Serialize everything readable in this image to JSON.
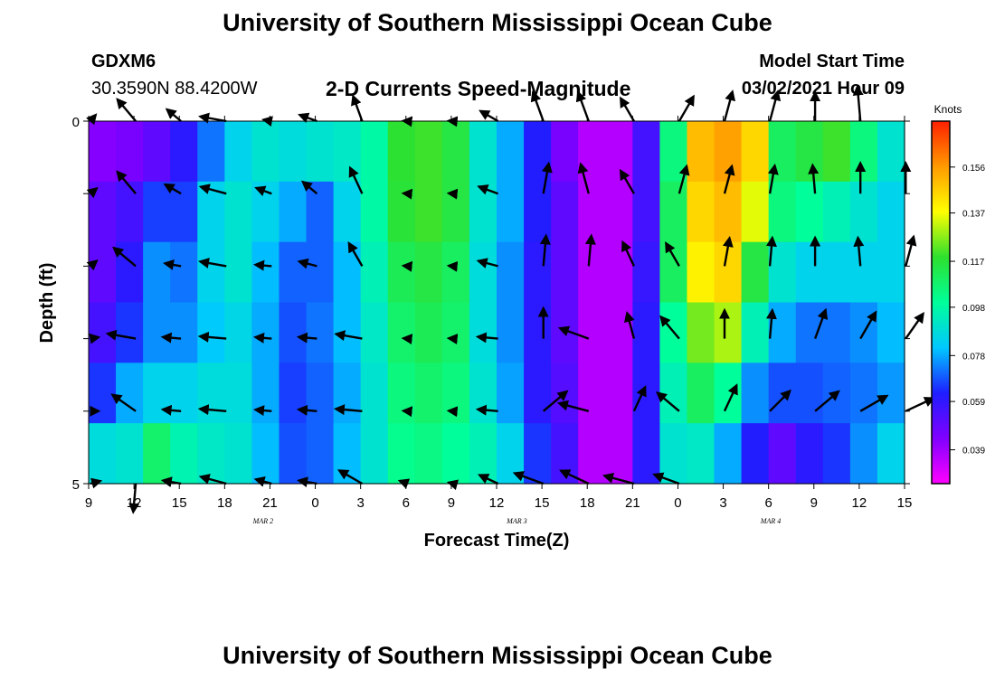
{
  "page": {
    "title_top": "University of Southern Mississippi Ocean Cube",
    "title_bottom": "University of Southern Mississippi Ocean Cube"
  },
  "header": {
    "station": "GDXM6",
    "coords": "30.3590N 88.4200W",
    "subtitle": "2-D Currents Speed-Magnitude",
    "model_label": "Model Start Time",
    "model_time": "03/02/2021 Hour 09"
  },
  "chart_data": {
    "type": "heatmap",
    "title": "2-D Currents Speed-Magnitude",
    "xlabel": "Forecast Time(Z)",
    "ylabel": "Depth (ft)",
    "y_ticks": [
      "0",
      "5"
    ],
    "ylim": [
      0,
      5
    ],
    "x_ticks": [
      "9",
      "12",
      "15",
      "18",
      "21",
      "0",
      "3",
      "6",
      "9",
      "12",
      "15",
      "18",
      "21",
      "0",
      "3",
      "6",
      "9",
      "12",
      "15"
    ],
    "date_labels": [
      {
        "text": "MAR 2",
        "hour": 16.5
      },
      {
        "text": "MAR 3",
        "hour": 40.5
      },
      {
        "text": "MAR 4",
        "hour": 64.5
      }
    ],
    "x_range_hours": [
      0,
      54
    ],
    "colorbar": {
      "title": "Knots",
      "ticks": [
        "0.156",
        "0.137",
        "0.117",
        "0.098",
        "0.078",
        "0.059",
        "0.039"
      ],
      "tick_values": [
        0.156,
        0.137,
        0.117,
        0.098,
        0.078,
        0.059,
        0.039
      ],
      "range": [
        0.025,
        0.175
      ],
      "stops": [
        "#ff00ff",
        "#8000ff",
        "#1e1eff",
        "#00c8ff",
        "#00ff9a",
        "#2ee02e",
        "#ffff00",
        "#ff9a00",
        "#ff2000"
      ]
    },
    "depth_layers": 5,
    "speed_grid": [
      [
        0.043,
        0.045,
        0.05,
        0.06,
        0.072,
        0.085,
        0.09,
        0.088,
        0.09,
        0.092,
        0.098,
        0.118,
        0.12,
        0.115,
        0.09,
        0.078,
        0.062,
        0.045,
        0.036,
        0.036,
        0.055,
        0.105,
        0.15,
        0.155,
        0.145,
        0.11,
        0.115,
        0.12,
        0.105,
        0.09
      ],
      [
        0.05,
        0.055,
        0.066,
        0.066,
        0.085,
        0.09,
        0.085,
        0.078,
        0.07,
        0.085,
        0.098,
        0.117,
        0.12,
        0.115,
        0.09,
        0.078,
        0.062,
        0.05,
        0.036,
        0.036,
        0.055,
        0.11,
        0.145,
        0.15,
        0.135,
        0.105,
        0.1,
        0.095,
        0.09,
        0.085
      ],
      [
        0.05,
        0.06,
        0.075,
        0.072,
        0.085,
        0.09,
        0.08,
        0.07,
        0.07,
        0.08,
        0.095,
        0.112,
        0.115,
        0.11,
        0.088,
        0.075,
        0.06,
        0.05,
        0.036,
        0.036,
        0.058,
        0.11,
        0.14,
        0.145,
        0.115,
        0.09,
        0.085,
        0.085,
        0.085,
        0.085
      ],
      [
        0.055,
        0.065,
        0.075,
        0.075,
        0.082,
        0.086,
        0.078,
        0.068,
        0.072,
        0.08,
        0.092,
        0.108,
        0.112,
        0.108,
        0.088,
        0.075,
        0.06,
        0.05,
        0.036,
        0.036,
        0.06,
        0.1,
        0.125,
        0.13,
        0.095,
        0.078,
        0.072,
        0.072,
        0.075,
        0.08
      ],
      [
        0.065,
        0.078,
        0.085,
        0.085,
        0.088,
        0.088,
        0.078,
        0.066,
        0.07,
        0.078,
        0.09,
        0.105,
        0.108,
        0.105,
        0.09,
        0.077,
        0.06,
        0.052,
        0.036,
        0.036,
        0.06,
        0.095,
        0.11,
        0.1,
        0.075,
        0.068,
        0.068,
        0.07,
        0.072,
        0.076
      ],
      [
        0.088,
        0.09,
        0.108,
        0.096,
        0.092,
        0.09,
        0.08,
        0.068,
        0.07,
        0.08,
        0.09,
        0.102,
        0.104,
        0.1,
        0.095,
        0.085,
        0.065,
        0.055,
        0.036,
        0.036,
        0.06,
        0.09,
        0.092,
        0.078,
        0.062,
        0.05,
        0.06,
        0.065,
        0.075,
        0.085
      ]
    ],
    "vectors": [
      {
        "depth": 0,
        "cols": [
          [
            -50,
            20
          ],
          [
            -130,
            70
          ],
          [
            -140,
            45
          ],
          [
            -170,
            65
          ],
          [
            -170,
            20
          ],
          [
            -160,
            45
          ],
          [
            -110,
            65
          ],
          [
            -175,
            10
          ],
          [
            -175,
            10
          ],
          [
            -150,
            50
          ],
          [
            -110,
            75
          ],
          [
            -110,
            75
          ],
          [
            -120,
            65
          ],
          [
            -60,
            70
          ],
          [
            -75,
            75
          ],
          [
            -75,
            75
          ],
          [
            -90,
            70
          ],
          [
            -95,
            85
          ],
          [
            0,
            0
          ]
        ]
      },
      {
        "depth": 1,
        "cols": [
          [
            -40,
            20
          ],
          [
            -130,
            70
          ],
          [
            -150,
            45
          ],
          [
            -165,
            65
          ],
          [
            -160,
            40
          ],
          [
            -140,
            45
          ],
          [
            -115,
            70
          ],
          [
            -175,
            10
          ],
          [
            -175,
            10
          ],
          [
            -160,
            50
          ],
          [
            -80,
            75
          ],
          [
            -105,
            75
          ],
          [
            -120,
            65
          ],
          [
            -75,
            70
          ],
          [
            -75,
            70
          ],
          [
            -80,
            70
          ],
          [
            -95,
            70
          ],
          [
            -90,
            75
          ],
          [
            -90,
            75
          ]
        ]
      },
      {
        "depth": 2,
        "cols": [
          [
            -40,
            20
          ],
          [
            -140,
            70
          ],
          [
            -170,
            40
          ],
          [
            -170,
            65
          ],
          [
            -175,
            40
          ],
          [
            -165,
            45
          ],
          [
            -120,
            65
          ],
          [
            -175,
            10
          ],
          [
            -175,
            10
          ],
          [
            -165,
            50
          ],
          [
            -85,
            75
          ],
          [
            -85,
            75
          ],
          [
            -115,
            65
          ],
          [
            -120,
            65
          ],
          [
            -80,
            70
          ],
          [
            -85,
            70
          ],
          [
            -90,
            70
          ],
          [
            -95,
            70
          ],
          [
            -75,
            75
          ]
        ]
      },
      {
        "depth": 3,
        "cols": [
          [
            -10,
            20
          ],
          [
            -170,
            70
          ],
          [
            -175,
            45
          ],
          [
            -175,
            65
          ],
          [
            -175,
            40
          ],
          [
            -175,
            45
          ],
          [
            -170,
            65
          ],
          [
            -175,
            10
          ],
          [
            -175,
            10
          ],
          [
            -175,
            50
          ],
          [
            -90,
            75
          ],
          [
            -160,
            75
          ],
          [
            -105,
            65
          ],
          [
            -130,
            70
          ],
          [
            -90,
            70
          ],
          [
            -85,
            70
          ],
          [
            -70,
            75
          ],
          [
            -60,
            75
          ],
          [
            -55,
            75
          ]
        ]
      },
      {
        "depth": 4,
        "cols": [
          [
            0,
            20
          ],
          [
            -145,
            70
          ],
          [
            -175,
            45
          ],
          [
            -175,
            65
          ],
          [
            -175,
            40
          ],
          [
            -175,
            45
          ],
          [
            -175,
            65
          ],
          [
            -175,
            10
          ],
          [
            -175,
            10
          ],
          [
            -175,
            50
          ],
          [
            -40,
            75
          ],
          [
            -165,
            75
          ],
          [
            -65,
            65
          ],
          [
            -140,
            70
          ],
          [
            -65,
            70
          ],
          [
            -45,
            70
          ],
          [
            -40,
            75
          ],
          [
            -30,
            75
          ],
          [
            -25,
            75
          ]
        ]
      },
      {
        "depth": 5,
        "cols": [
          [
            -15,
            25
          ],
          [
            -265,
            70
          ],
          [
            -170,
            45
          ],
          [
            -165,
            65
          ],
          [
            -165,
            40
          ],
          [
            -170,
            45
          ],
          [
            -150,
            65
          ],
          [
            -160,
            20
          ],
          [
            -165,
            10
          ],
          [
            -155,
            50
          ],
          [
            -160,
            75
          ],
          [
            -155,
            75
          ],
          [
            -165,
            75
          ],
          [
            -160,
            65
          ],
          [
            0,
            0
          ],
          [
            0,
            0
          ],
          [
            0,
            0
          ],
          [
            0,
            0
          ],
          [
            0,
            0
          ]
        ]
      }
    ]
  }
}
